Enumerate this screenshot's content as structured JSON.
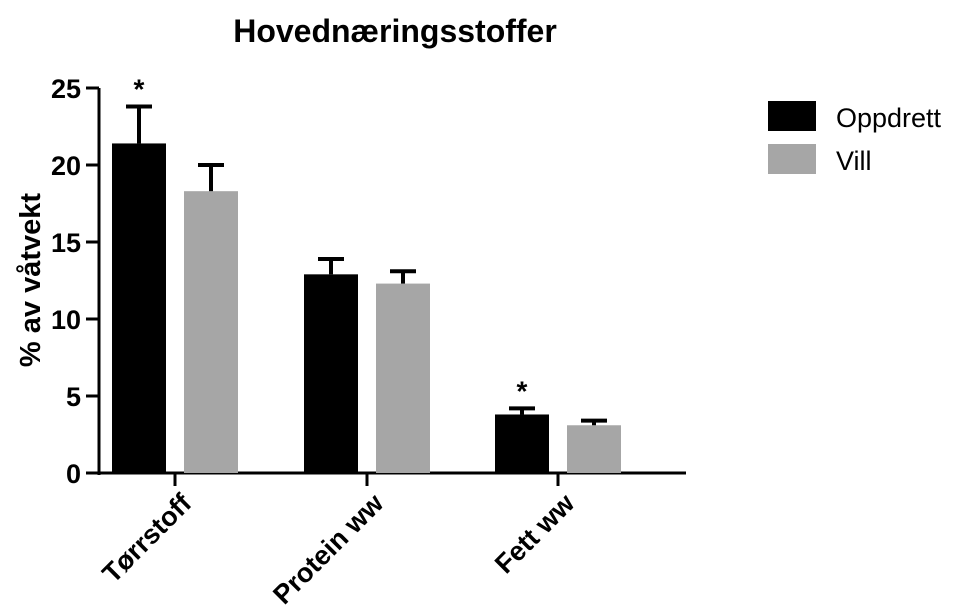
{
  "chart_data": {
    "type": "bar",
    "title": "Hovednæringsstoffer",
    "xlabel": "",
    "ylabel": "% av våtvekt",
    "ylim": [
      0,
      25
    ],
    "yticks": [
      0,
      5,
      10,
      15,
      20,
      25
    ],
    "categories": [
      "Tørrstoff",
      "Protein ww",
      "Fett ww"
    ],
    "series": [
      {
        "name": "Oppdrett",
        "color": "#000000",
        "values": [
          21.4,
          12.9,
          3.8
        ],
        "errors": [
          2.4,
          1.0,
          0.4
        ]
      },
      {
        "name": "Vill",
        "color": "#a6a6a6",
        "values": [
          18.3,
          12.3,
          3.1
        ],
        "errors": [
          1.7,
          0.8,
          0.3
        ]
      }
    ],
    "annotations": [
      {
        "category": "Tørrstoff",
        "series": "Oppdrett",
        "text": "*"
      },
      {
        "category": "Fett ww",
        "series": "Oppdrett",
        "text": "*"
      }
    ],
    "legend_position": "top-right",
    "grid": false
  }
}
